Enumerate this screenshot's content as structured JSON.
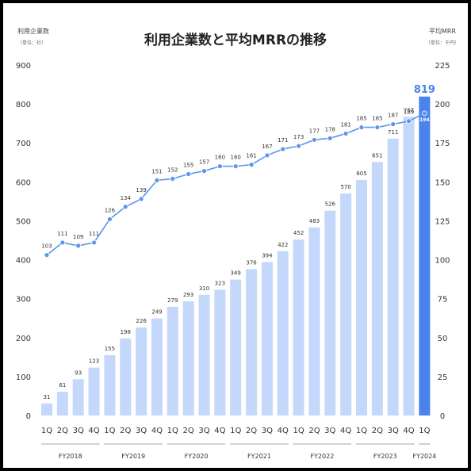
{
  "chart_data": {
    "type": "bar",
    "title": "利用企業数と平均MRRの推移",
    "left_axis": {
      "label": "利用企業数",
      "unit": "（単位：社）",
      "ticks": [
        0,
        100,
        200,
        300,
        400,
        500,
        600,
        700,
        800,
        900
      ],
      "ylim": [
        0,
        900
      ]
    },
    "right_axis": {
      "label": "平均MRR",
      "unit": "（単位：千円）",
      "ticks": [
        0,
        25,
        50,
        75,
        100,
        125,
        150,
        175,
        200,
        225
      ],
      "ylim": [
        0,
        225
      ]
    },
    "quarters": [
      "1Q",
      "2Q",
      "3Q",
      "4Q",
      "1Q",
      "2Q",
      "3Q",
      "4Q",
      "1Q",
      "2Q",
      "3Q",
      "4Q",
      "1Q",
      "2Q",
      "3Q",
      "4Q",
      "1Q",
      "2Q",
      "3Q",
      "4Q",
      "1Q",
      "2Q",
      "3Q",
      "4Q",
      "1Q"
    ],
    "fiscal_years": [
      "FY2018",
      "FY2019",
      "FY2020",
      "FY2021",
      "FY2022",
      "FY2023",
      "FY2024"
    ],
    "series": [
      {
        "type": "bar",
        "axis": "left",
        "values": [
          31,
          61,
          93,
          123,
          155,
          198,
          226,
          249,
          279,
          293,
          310,
          323,
          349,
          376,
          394,
          422,
          452,
          483,
          526,
          570,
          605,
          651,
          711,
          767,
          819
        ]
      },
      {
        "type": "line",
        "axis": "right",
        "values": [
          103,
          111,
          109,
          111,
          126,
          134,
          139,
          151,
          152,
          155,
          157,
          160,
          160,
          161,
          167,
          171,
          173,
          177,
          178,
          181,
          185,
          185,
          187,
          189,
          194
        ]
      }
    ],
    "bar_color": "#c3d8fb",
    "highlight_color": "#4a82ee",
    "line_color": "#5a96ec"
  }
}
